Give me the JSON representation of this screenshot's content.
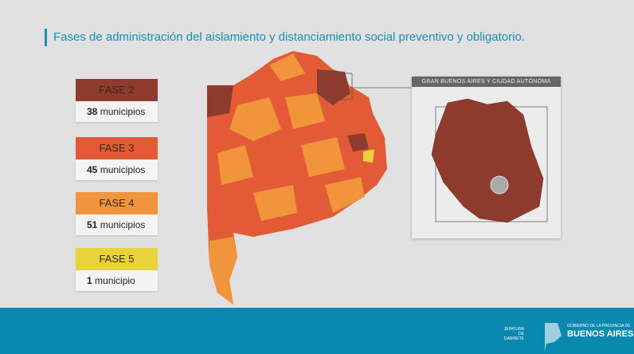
{
  "title": "Fases de administración del aislamiento y distanciamiento social preventivo y obligatorio.",
  "phases": [
    {
      "label": "FASE 2",
      "count": "38",
      "unit": "municipios",
      "color": "#8e3a2c"
    },
    {
      "label": "FASE 3",
      "count": "45",
      "unit": "municipios",
      "color": "#e25b36"
    },
    {
      "label": "FASE 4",
      "count": "51",
      "unit": "municipios",
      "color": "#f0953c"
    },
    {
      "label": "FASE 5",
      "count": "1",
      "unit": "municipio",
      "color": "#e9d33c"
    }
  ],
  "inset": {
    "title": "GRAN BUENOS AIRES Y CIUDAD AUTÓNOMA"
  },
  "footer": {
    "org1": "JEFATURA DE GABINETE",
    "org2_small": "GOBIERNO DE LA PROVINCIA DE",
    "org2_big": "BUENOS AIRES"
  }
}
